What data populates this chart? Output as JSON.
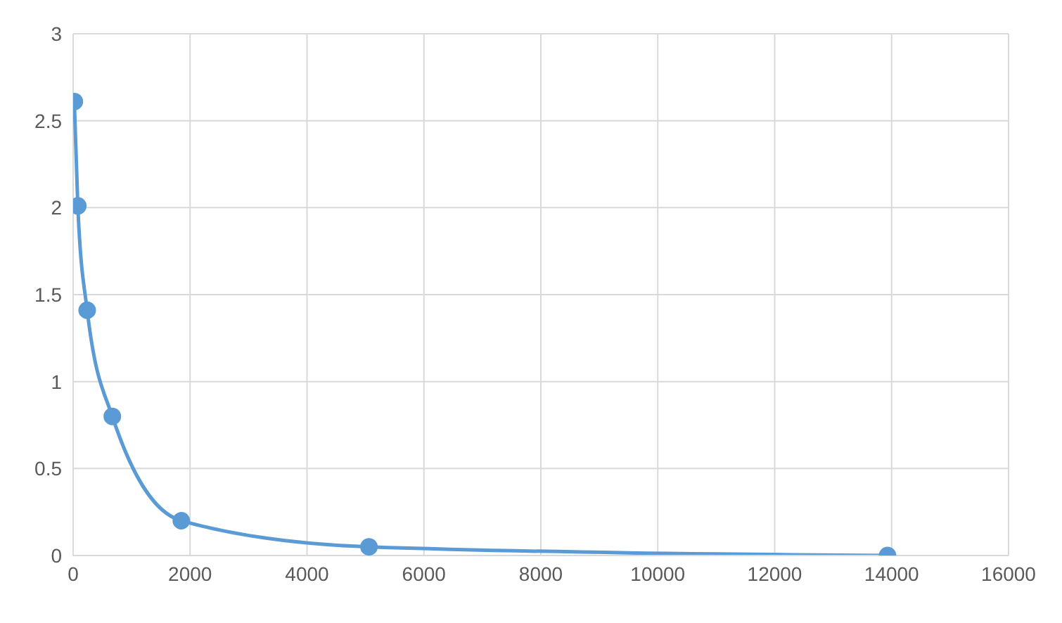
{
  "chart_data": {
    "type": "line",
    "x": [
      20,
      80,
      240,
      670,
      1850,
      5060,
      13930
    ],
    "series": [
      {
        "color": "#5b9bd5",
        "values": [
          2.61,
          2.01,
          1.41,
          0.8,
          0.2,
          0.05,
          0.0
        ]
      }
    ],
    "xlim": [
      0,
      16000
    ],
    "xticks": [
      0,
      2000,
      4000,
      6000,
      8000,
      10000,
      12000,
      14000,
      16000
    ],
    "ylim": [
      0,
      3
    ],
    "yticks": [
      0,
      0.5,
      1,
      1.5,
      2,
      2.5,
      3
    ],
    "grid": true,
    "marker": "circle",
    "line_style": "solid"
  }
}
